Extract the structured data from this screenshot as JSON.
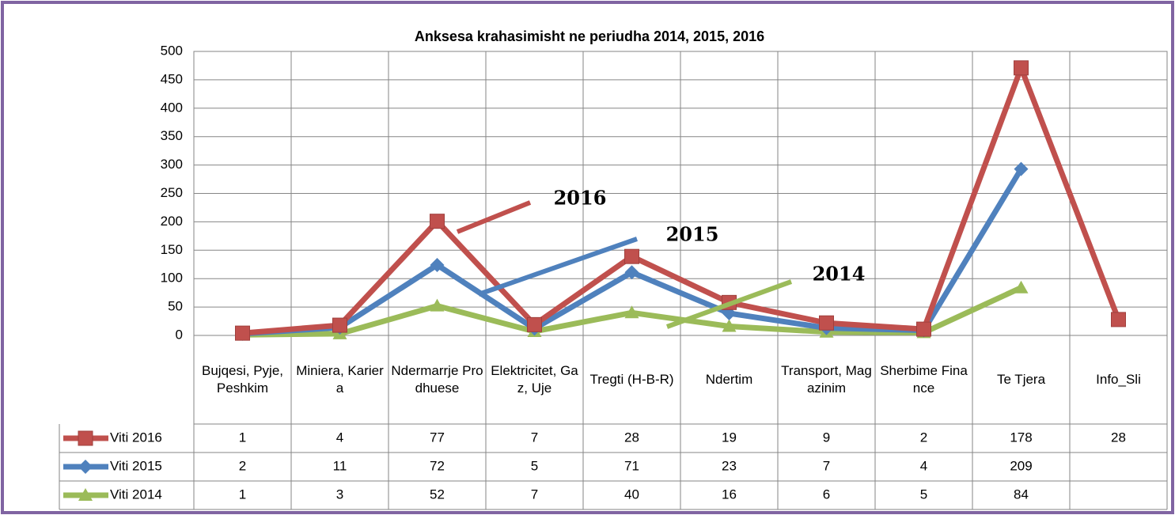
{
  "chart_data": {
    "type": "stacked-line",
    "title": "Anksesa krahasimisht  ne periudha  2014, 2015, 2016",
    "categories": [
      "Bujqesi, Pyje, Peshkim",
      "Miniera, Kariera",
      "Ndermarrje Prodhuese",
      "Elektricitet, Gaz, Uje",
      "Tregti (H-B-R)",
      "Ndertim",
      "Transport, Magazinim",
      "Sherbime Finance",
      "Te Tjera",
      "Info_Sli"
    ],
    "series": [
      {
        "name": "Viti 2016",
        "color": "#c0504d",
        "marker": "square",
        "values": [
          1,
          4,
          77,
          7,
          28,
          19,
          9,
          2,
          178,
          28
        ]
      },
      {
        "name": "Viti 2015",
        "color": "#4f81bd",
        "marker": "diamond",
        "values": [
          2,
          11,
          72,
          5,
          71,
          23,
          7,
          4,
          209,
          null
        ]
      },
      {
        "name": "Viti 2014",
        "color": "#9bbb59",
        "marker": "triangle",
        "values": [
          1,
          3,
          52,
          7,
          40,
          16,
          6,
          5,
          84,
          null
        ]
      }
    ],
    "ylim": [
      0,
      500
    ],
    "yticks": [
      0,
      50,
      100,
      150,
      200,
      250,
      300,
      350,
      400,
      450,
      500
    ],
    "grid": true,
    "annotations": [
      {
        "text": "2016",
        "color": "#c0504d"
      },
      {
        "text": "2015",
        "color": "#4f81bd"
      },
      {
        "text": "2014",
        "color": "#9bbb59"
      }
    ]
  }
}
